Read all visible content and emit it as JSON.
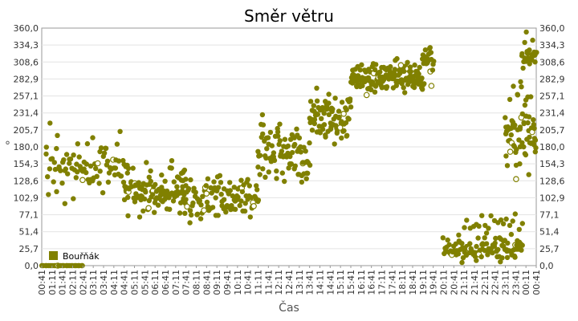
{
  "chart_data": {
    "type": "scatter",
    "title": "Směr větru",
    "xlabel": "Čas",
    "ylabel": "°",
    "ylim": [
      0,
      360
    ],
    "grid": true,
    "legend_position": "bottom-left",
    "colors": {
      "series": "#808000",
      "grid": "#e3e3e3",
      "axis": "#9a9a9a"
    },
    "y_ticks": [
      "0,0",
      "25,7",
      "51,4",
      "77,1",
      "102,9",
      "128,6",
      "154,3",
      "180,0",
      "205,7",
      "231,4",
      "257,1",
      "282,9",
      "308,6",
      "334,3",
      "360,0"
    ],
    "x_ticks": [
      "00:41",
      "01:11",
      "01:41",
      "02:11",
      "02:41",
      "03:11",
      "03:41",
      "04:11",
      "04:41",
      "05:11",
      "05:41",
      "06:11",
      "06:41",
      "07:11",
      "07:41",
      "08:11",
      "08:41",
      "09:11",
      "09:41",
      "10:11",
      "10:41",
      "11:11",
      "11:41",
      "12:11",
      "12:41",
      "13:11",
      "13:41",
      "14:11",
      "14:41",
      "15:11",
      "15:41",
      "16:11",
      "16:41",
      "17:11",
      "17:41",
      "18:11",
      "18:41",
      "19:11",
      "19:41",
      "20:11",
      "20:41",
      "21:11",
      "21:41",
      "22:11",
      "22:41",
      "23:11",
      "23:41",
      "00:11",
      "00:41"
    ],
    "series": [
      {
        "name": "Bouřňák",
        "clusters": [
          {
            "from": 0.0,
            "to": 2.0,
            "center": 0,
            "spread": 0,
            "count": 25
          },
          {
            "from": 0.2,
            "to": 4.2,
            "center": 150,
            "spread": 55,
            "count": 90
          },
          {
            "from": 4.0,
            "to": 7.0,
            "center": 110,
            "spread": 45,
            "count": 110
          },
          {
            "from": 6.8,
            "to": 10.5,
            "center": 105,
            "spread": 40,
            "count": 110
          },
          {
            "from": 10.5,
            "to": 13.0,
            "center": 175,
            "spread": 60,
            "count": 90
          },
          {
            "from": 13.0,
            "to": 15.0,
            "center": 225,
            "spread": 45,
            "count": 80
          },
          {
            "from": 15.0,
            "to": 18.5,
            "center": 285,
            "spread": 25,
            "count": 150
          },
          {
            "from": 18.5,
            "to": 19.0,
            "center": 310,
            "spread": 30,
            "count": 25
          },
          {
            "from": 19.5,
            "to": 23.3,
            "center": 25,
            "spread": 25,
            "count": 110
          },
          {
            "from": 20.5,
            "to": 23.3,
            "center": 65,
            "spread": 15,
            "count": 20
          },
          {
            "from": 22.5,
            "to": 24.0,
            "center": 200,
            "spread": 80,
            "count": 70
          },
          {
            "from": 23.3,
            "to": 24.0,
            "center": 320,
            "spread": 30,
            "count": 25
          }
        ]
      }
    ]
  }
}
